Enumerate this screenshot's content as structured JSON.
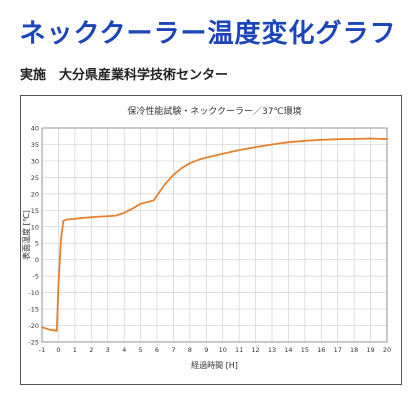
{
  "header": {
    "title": "ネッククーラー温度変化グラフ",
    "implementer": "実施　大分県産業科学技術センター"
  },
  "chart_data": {
    "type": "line",
    "title": "保冷性能試験・ネッククーラー／37℃環境",
    "xlabel": "経過時間 [H]",
    "ylabel": "表面温度 [℃]",
    "xlim": [
      -1,
      20
    ],
    "ylim": [
      -25,
      40
    ],
    "x_ticks": [
      -1,
      0,
      1,
      2,
      3,
      4,
      5,
      6,
      7,
      8,
      9,
      10,
      11,
      12,
      13,
      14,
      15,
      16,
      17,
      18,
      19,
      20
    ],
    "y_ticks": [
      -25,
      -20,
      -15,
      -10,
      -5,
      0,
      5,
      10,
      15,
      20,
      25,
      30,
      35,
      40
    ],
    "grid": true,
    "line_color": "#e8812f",
    "series": [
      {
        "x": [
          -1,
          -0.5,
          -0.1,
          0,
          0.15,
          0.3,
          0.5,
          1,
          1.5,
          2,
          2.5,
          3,
          3.5,
          4,
          4.5,
          5,
          5.5,
          5.8,
          6,
          6.5,
          7,
          7.5,
          8,
          8.5,
          9,
          10,
          11,
          12,
          13,
          14,
          15,
          16,
          17,
          18,
          19,
          20
        ],
        "y": [
          -20.5,
          -21.3,
          -21.6,
          -8,
          6,
          11.8,
          12.2,
          12.4,
          12.7,
          12.9,
          13.1,
          13.2,
          13.4,
          14.2,
          15.5,
          17,
          17.6,
          18,
          19.5,
          23,
          25.8,
          27.8,
          29.3,
          30.3,
          31,
          32.2,
          33.3,
          34.2,
          35,
          35.7,
          36.1,
          36.4,
          36.6,
          36.7,
          36.8,
          36.6
        ]
      }
    ]
  }
}
